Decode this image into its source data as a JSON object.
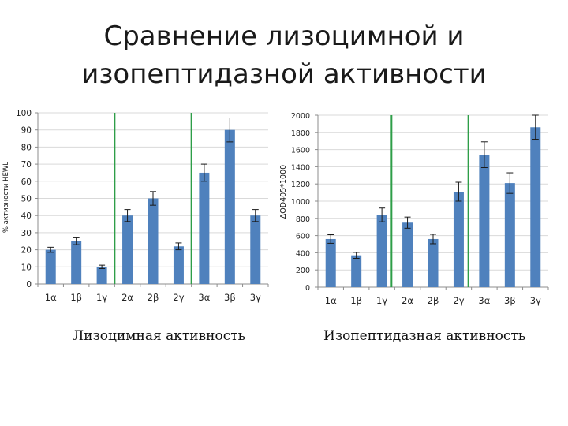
{
  "title": {
    "line1": "Сравнение лизоцимной и",
    "line2": "изопептидазной активности"
  },
  "colors": {
    "bar": "#4f81bd",
    "divider": "#2e9e48",
    "axis": "#8c8c8c",
    "grid": "#d9d9d9",
    "error": "#1a1a1a"
  },
  "chart_data": [
    {
      "type": "bar",
      "caption": "Лизоцимная активность",
      "ylabel": "% активности HEWL",
      "categories": [
        "1α",
        "1β",
        "1γ",
        "2α",
        "2β",
        "2γ",
        "3α",
        "3β",
        "3γ"
      ],
      "values": [
        20,
        25,
        10,
        40,
        50,
        22,
        65,
        90,
        40
      ],
      "errors": [
        1.5,
        2,
        1,
        3.5,
        4,
        2,
        5,
        7,
        3.5
      ],
      "ylim": [
        0,
        100
      ],
      "yticks": [
        0,
        10,
        20,
        30,
        40,
        50,
        60,
        70,
        80,
        90,
        100
      ],
      "grid": true,
      "group_dividers_after": [
        3,
        6
      ]
    },
    {
      "type": "bar",
      "caption": "Изопептидазная активность",
      "ylabel": "ΔOD405*1000",
      "categories": [
        "1α",
        "1β",
        "1γ",
        "2α",
        "2β",
        "2γ",
        "3α",
        "3β",
        "3γ"
      ],
      "values": [
        560,
        370,
        840,
        750,
        560,
        1110,
        1540,
        1210,
        1860
      ],
      "errors": [
        50,
        35,
        80,
        65,
        55,
        110,
        150,
        120,
        140
      ],
      "ylim": [
        0,
        2000
      ],
      "yticks": [
        0,
        200,
        400,
        600,
        800,
        1000,
        1200,
        1400,
        1600,
        1800,
        2000
      ],
      "grid": true,
      "group_dividers_after": [
        3,
        6
      ]
    }
  ]
}
